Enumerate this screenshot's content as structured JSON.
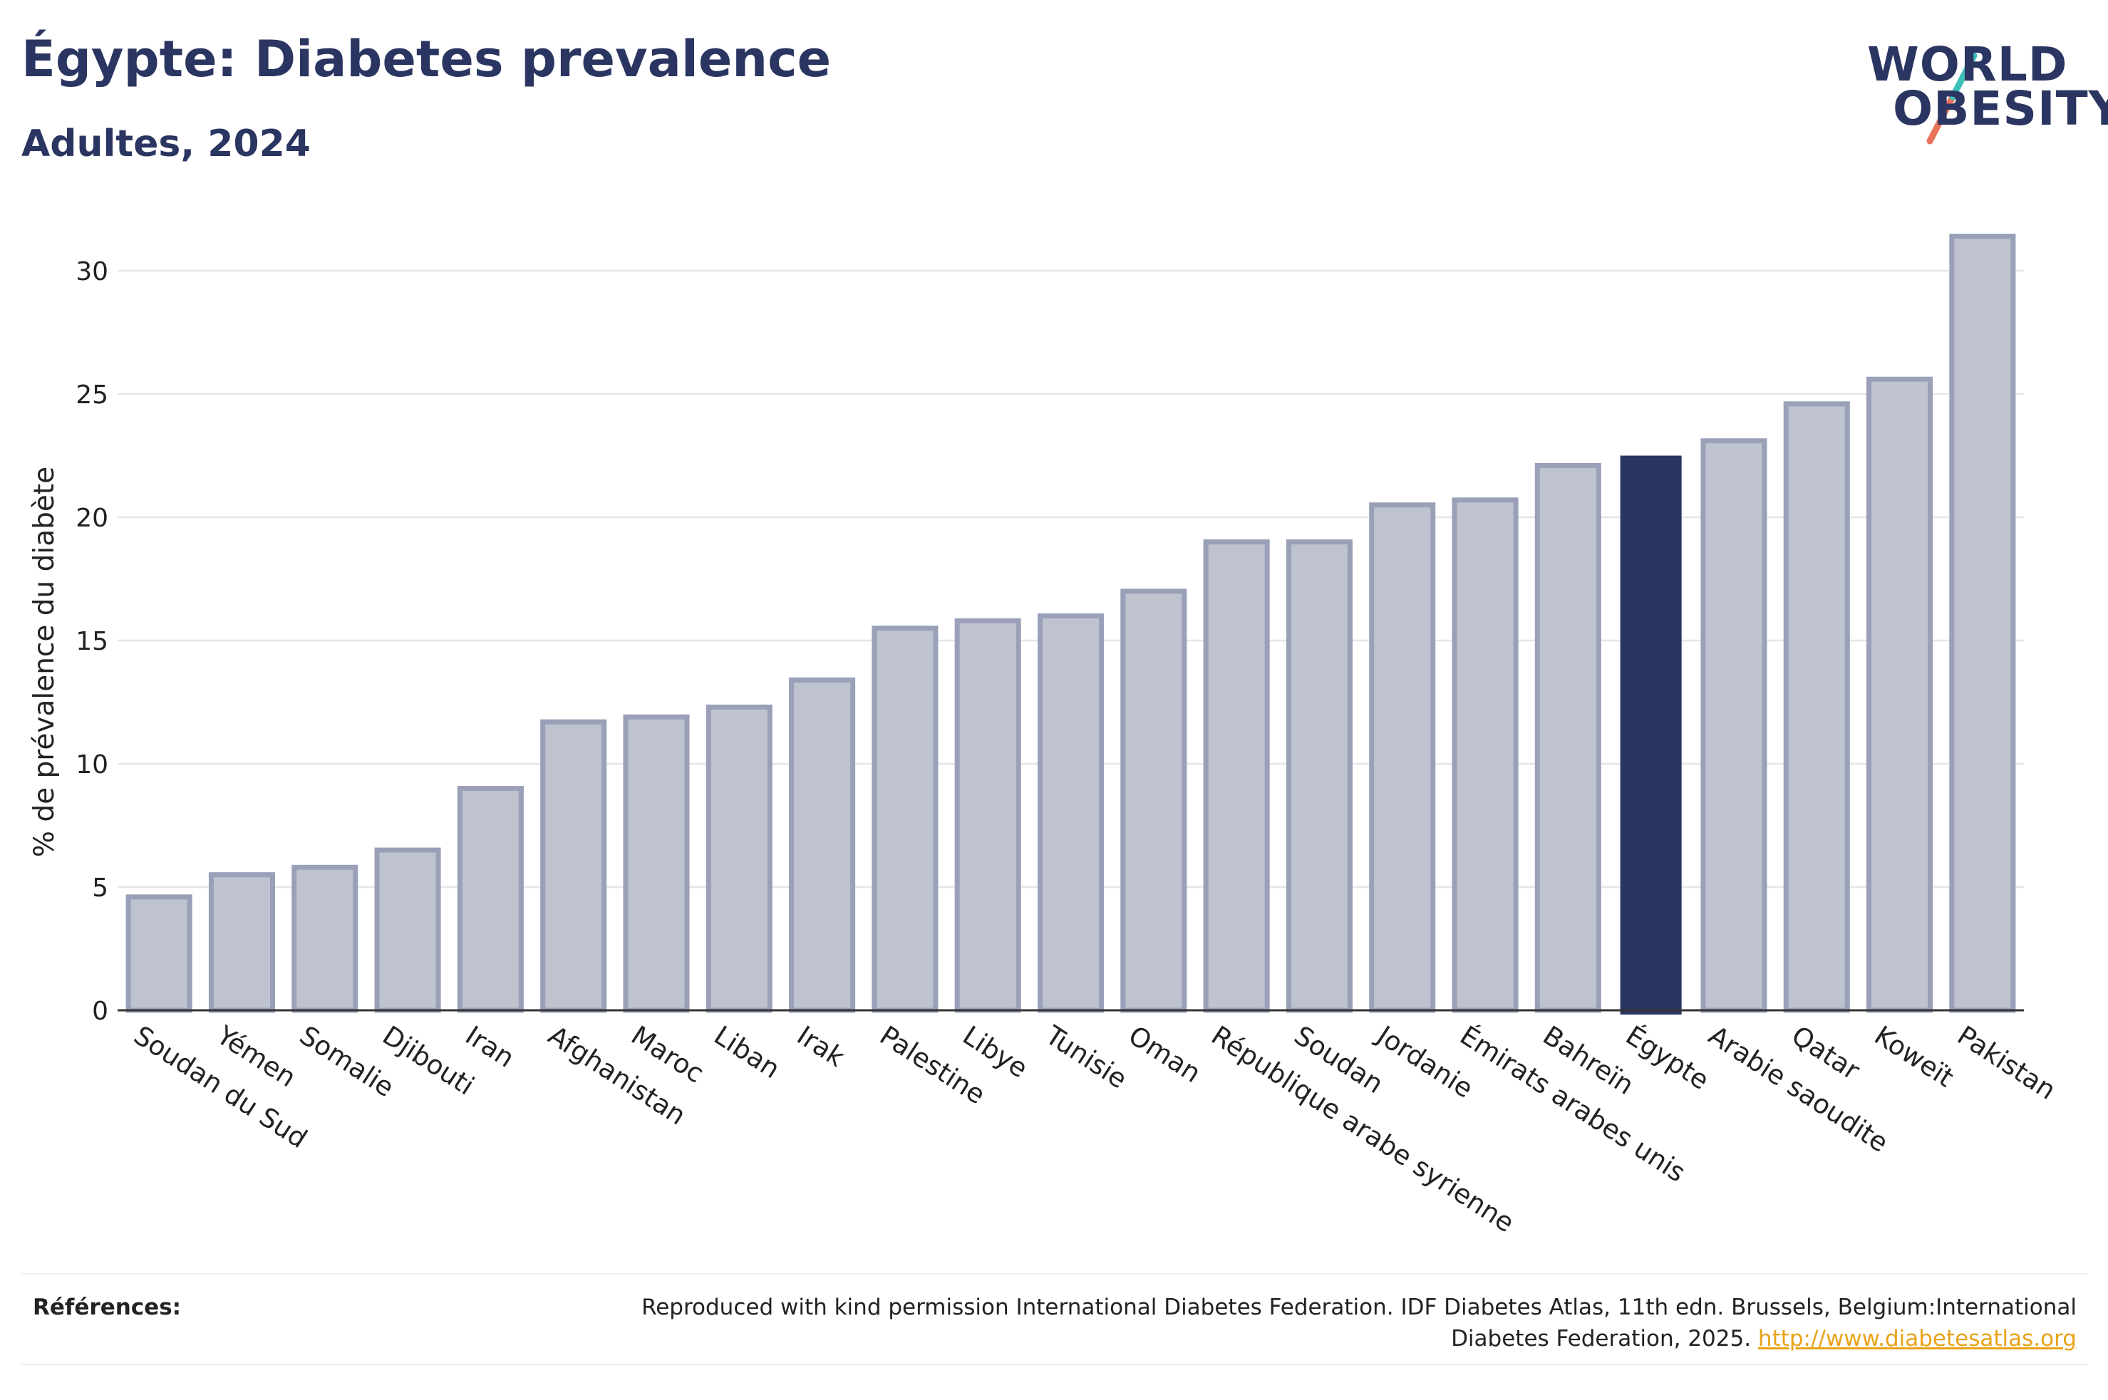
{
  "header": {
    "title": "Égypte: Diabetes prevalence",
    "subtitle": "Adultes, 2024"
  },
  "logo": {
    "line1": "WORLD",
    "line2": "OBESITY",
    "slash_colors": [
      "#3dbfb8",
      "#e8735a"
    ]
  },
  "colors": {
    "bar": "#bfc2cf",
    "bar_border": "#9aa0b8",
    "highlight": "#2b3561",
    "text_dark": "#2b3561",
    "link": "#e8a317"
  },
  "chart_data": {
    "type": "bar",
    "ylabel": "% de prévalence du diabète",
    "ylim": [
      0,
      32
    ],
    "yticks": [
      0,
      5,
      10,
      15,
      20,
      25,
      30
    ],
    "grid": true,
    "highlight_category": "Égypte",
    "categories": [
      "Soudan du Sud",
      "Yémen",
      "Somalie",
      "Djibouti",
      "Iran",
      "Afghanistan",
      "Maroc",
      "Liban",
      "Irak",
      "Palestine",
      "Libye",
      "Tunisie",
      "Oman",
      "République arabe syrienne",
      "Soudan",
      "Jordanie",
      "Émirats arabes unis",
      "Bahreïn",
      "Égypte",
      "Arabie saoudite",
      "Qatar",
      "Koweït",
      "Pakistan"
    ],
    "values": [
      4.6,
      5.5,
      5.8,
      6.5,
      9.0,
      11.7,
      11.9,
      12.3,
      13.4,
      15.5,
      15.8,
      16.0,
      17.0,
      19.0,
      19.0,
      20.5,
      20.7,
      22.1,
      22.5,
      23.1,
      24.6,
      25.6,
      31.4
    ]
  },
  "footer": {
    "label": "Références:",
    "text": "Reproduced with kind permission International Diabetes Federation. IDF Diabetes Atlas, 11th edn. Brussels, Belgium:International Diabetes Federation, 2025.",
    "link": "http://www.diabetesatlas.org"
  }
}
